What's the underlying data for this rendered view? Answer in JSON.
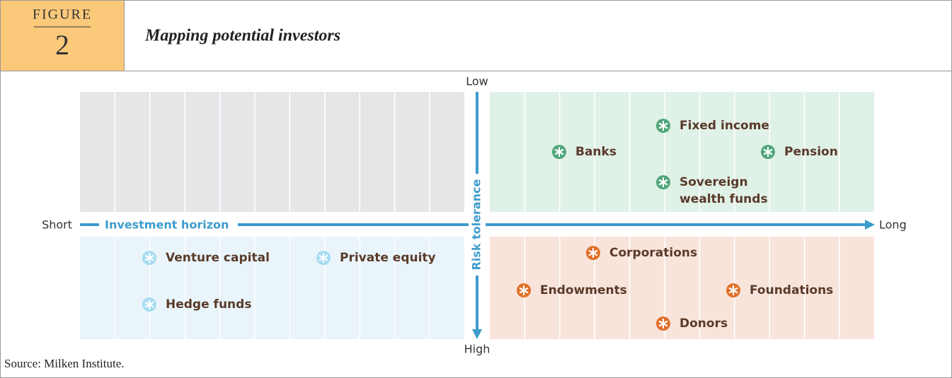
{
  "header": {
    "figure_label": "FIGURE",
    "figure_number": "2",
    "title": "Mapping potential investors"
  },
  "axes": {
    "x_start": "Short",
    "x_label": "Investment horizon",
    "x_end": "Long",
    "y_start": "Low",
    "y_label": "Risk tolerance",
    "y_end": "High"
  },
  "groups": [
    {
      "color": "#4fa67a",
      "items": [
        {
          "lines": [
            "Fixed income"
          ]
        },
        {
          "lines": [
            "Banks"
          ]
        },
        {
          "lines": [
            "Pension"
          ]
        },
        {
          "lines": [
            "Sovereign",
            "wealth funds"
          ]
        }
      ]
    },
    {
      "color": "#e0702a",
      "items": [
        {
          "lines": [
            "Corporations"
          ]
        },
        {
          "lines": [
            "Endowments"
          ]
        },
        {
          "lines": [
            "Foundations"
          ]
        },
        {
          "lines": [
            "Donors"
          ]
        }
      ]
    },
    {
      "color": "#a6dcf0",
      "items": [
        {
          "lines": [
            "Venture capital"
          ]
        },
        {
          "lines": [
            "Private equity"
          ]
        },
        {
          "lines": [
            "Hedge funds"
          ]
        }
      ]
    }
  ],
  "source": "Source: Milken Institute."
}
